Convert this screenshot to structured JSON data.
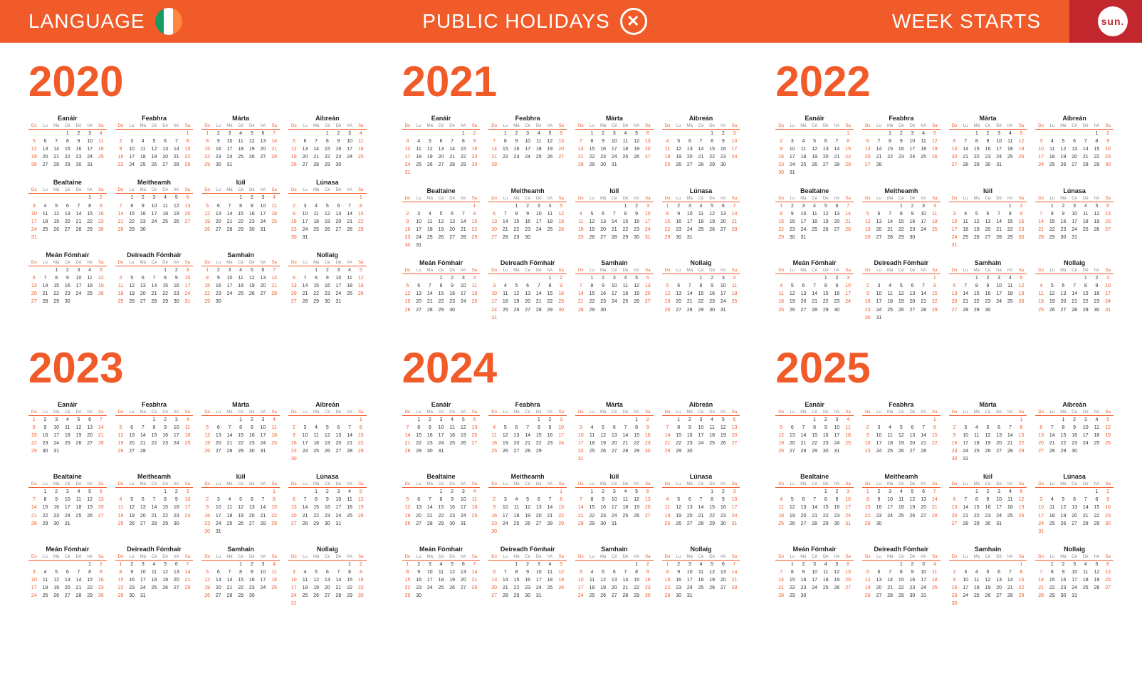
{
  "header": {
    "language_label": "LANGUAGE",
    "holidays_label": "PUBLIC HOLIDAYS",
    "holidays_icon": "✕",
    "week_starts_label": "WEEK STARTS",
    "week_starts_value": "sun.",
    "flag_colors": [
      "#169b62",
      "#ffffff",
      "#ff883e"
    ],
    "bg_color": "#f15a29",
    "accent_bg": "#c1272d"
  },
  "day_headers": [
    "Do",
    "Lu",
    "Má",
    "Cé",
    "Dé",
    "hA",
    "Sa"
  ],
  "month_names": [
    "Eanáir",
    "Feabhra",
    "Márta",
    "Aibreán",
    "Bealtaine",
    "Meitheamh",
    "Iúil",
    "Lúnasa",
    "Meán Fómhair",
    "Deireadh Fómhair",
    "Samhain",
    "Nollaig"
  ],
  "years": [
    {
      "year": 2020,
      "leap": true,
      "jan1_dow": 3
    },
    {
      "year": 2021,
      "leap": false,
      "jan1_dow": 5
    },
    {
      "year": 2022,
      "leap": false,
      "jan1_dow": 6
    },
    {
      "year": 2023,
      "leap": false,
      "jan1_dow": 0
    },
    {
      "year": 2024,
      "leap": true,
      "jan1_dow": 1
    },
    {
      "year": 2025,
      "leap": false,
      "jan1_dow": 3
    }
  ],
  "colors": {
    "accent": "#f15a29",
    "text": "#333333",
    "muted": "#888888"
  }
}
